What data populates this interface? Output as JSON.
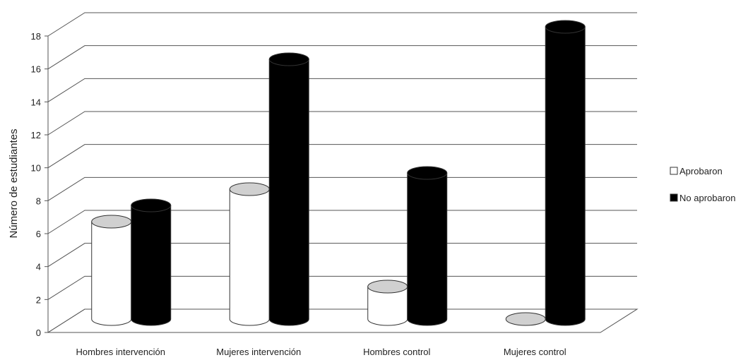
{
  "chart_data": {
    "type": "bar",
    "title": "",
    "xlabel": "",
    "ylabel": "Número de estudiantes",
    "ylim": [
      0,
      18
    ],
    "yticks": [
      "0",
      "2",
      "4",
      "6",
      "8",
      "10",
      "12",
      "14",
      "16",
      "18"
    ],
    "categories": [
      "Hombres intervención",
      "Mujeres intervención",
      "Hombres control",
      "Mujeres control"
    ],
    "series": [
      {
        "name": "Aprobaron",
        "values": [
          6,
          8,
          2,
          0
        ]
      },
      {
        "name": "No aprobaron",
        "values": [
          7,
          16,
          9,
          18
        ]
      }
    ],
    "grid": true,
    "legend": "right",
    "style": "3d-cylinder",
    "colors": {
      "Aprobaron": "#ffffff",
      "No aprobaron": "#000000",
      "grid": "#555555"
    }
  }
}
